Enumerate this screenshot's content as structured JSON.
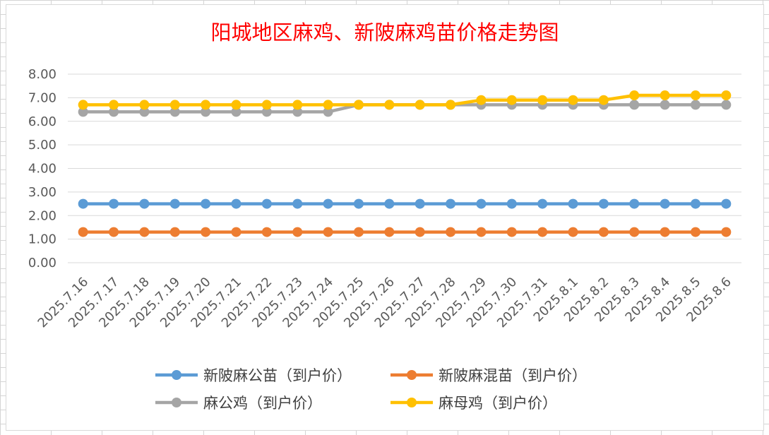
{
  "chart_data": {
    "type": "line",
    "title": "阳城地区麻鸡、新陂麻鸡苗价格走势图",
    "x": [
      "2025.7.16",
      "2025.7.17",
      "2025.7.18",
      "2025.7.19",
      "2025.7.20",
      "2025.7.21",
      "2025.7.22",
      "2025.7.23",
      "2025.7.24",
      "2025.7.25",
      "2025.7.26",
      "2025.7.27",
      "2025.7.28",
      "2025.7.29",
      "2025.7.30",
      "2025.7.31",
      "2025.8.1",
      "2025.8.2",
      "2025.8.3",
      "2025.8.4",
      "2025.8.5",
      "2025.8.6"
    ],
    "ylim": [
      0,
      8
    ],
    "yticks": [
      "0.00",
      "1.00",
      "2.00",
      "3.00",
      "4.00",
      "5.00",
      "6.00",
      "7.00",
      "8.00"
    ],
    "grid": true,
    "legend_position": "bottom",
    "series": [
      {
        "name": "新陂麻公苗（到户价）",
        "color": "#5b9bd5",
        "values": [
          2.5,
          2.5,
          2.5,
          2.5,
          2.5,
          2.5,
          2.5,
          2.5,
          2.5,
          2.5,
          2.5,
          2.5,
          2.5,
          2.5,
          2.5,
          2.5,
          2.5,
          2.5,
          2.5,
          2.5,
          2.5,
          2.5
        ]
      },
      {
        "name": "新陂麻混苗（到户价）",
        "color": "#ed7d31",
        "values": [
          1.3,
          1.3,
          1.3,
          1.3,
          1.3,
          1.3,
          1.3,
          1.3,
          1.3,
          1.3,
          1.3,
          1.3,
          1.3,
          1.3,
          1.3,
          1.3,
          1.3,
          1.3,
          1.3,
          1.3,
          1.3,
          1.3
        ]
      },
      {
        "name": "麻公鸡（到户价）",
        "color": "#a5a5a5",
        "values": [
          6.4,
          6.4,
          6.4,
          6.4,
          6.4,
          6.4,
          6.4,
          6.4,
          6.4,
          6.7,
          6.7,
          6.7,
          6.7,
          6.7,
          6.7,
          6.7,
          6.7,
          6.7,
          6.7,
          6.7,
          6.7,
          6.7
        ]
      },
      {
        "name": "麻母鸡（到户价）",
        "color": "#ffc000",
        "values": [
          6.7,
          6.7,
          6.7,
          6.7,
          6.7,
          6.7,
          6.7,
          6.7,
          6.7,
          6.7,
          6.7,
          6.7,
          6.7,
          6.9,
          6.9,
          6.9,
          6.9,
          6.9,
          7.1,
          7.1,
          7.1,
          7.1
        ]
      }
    ]
  }
}
